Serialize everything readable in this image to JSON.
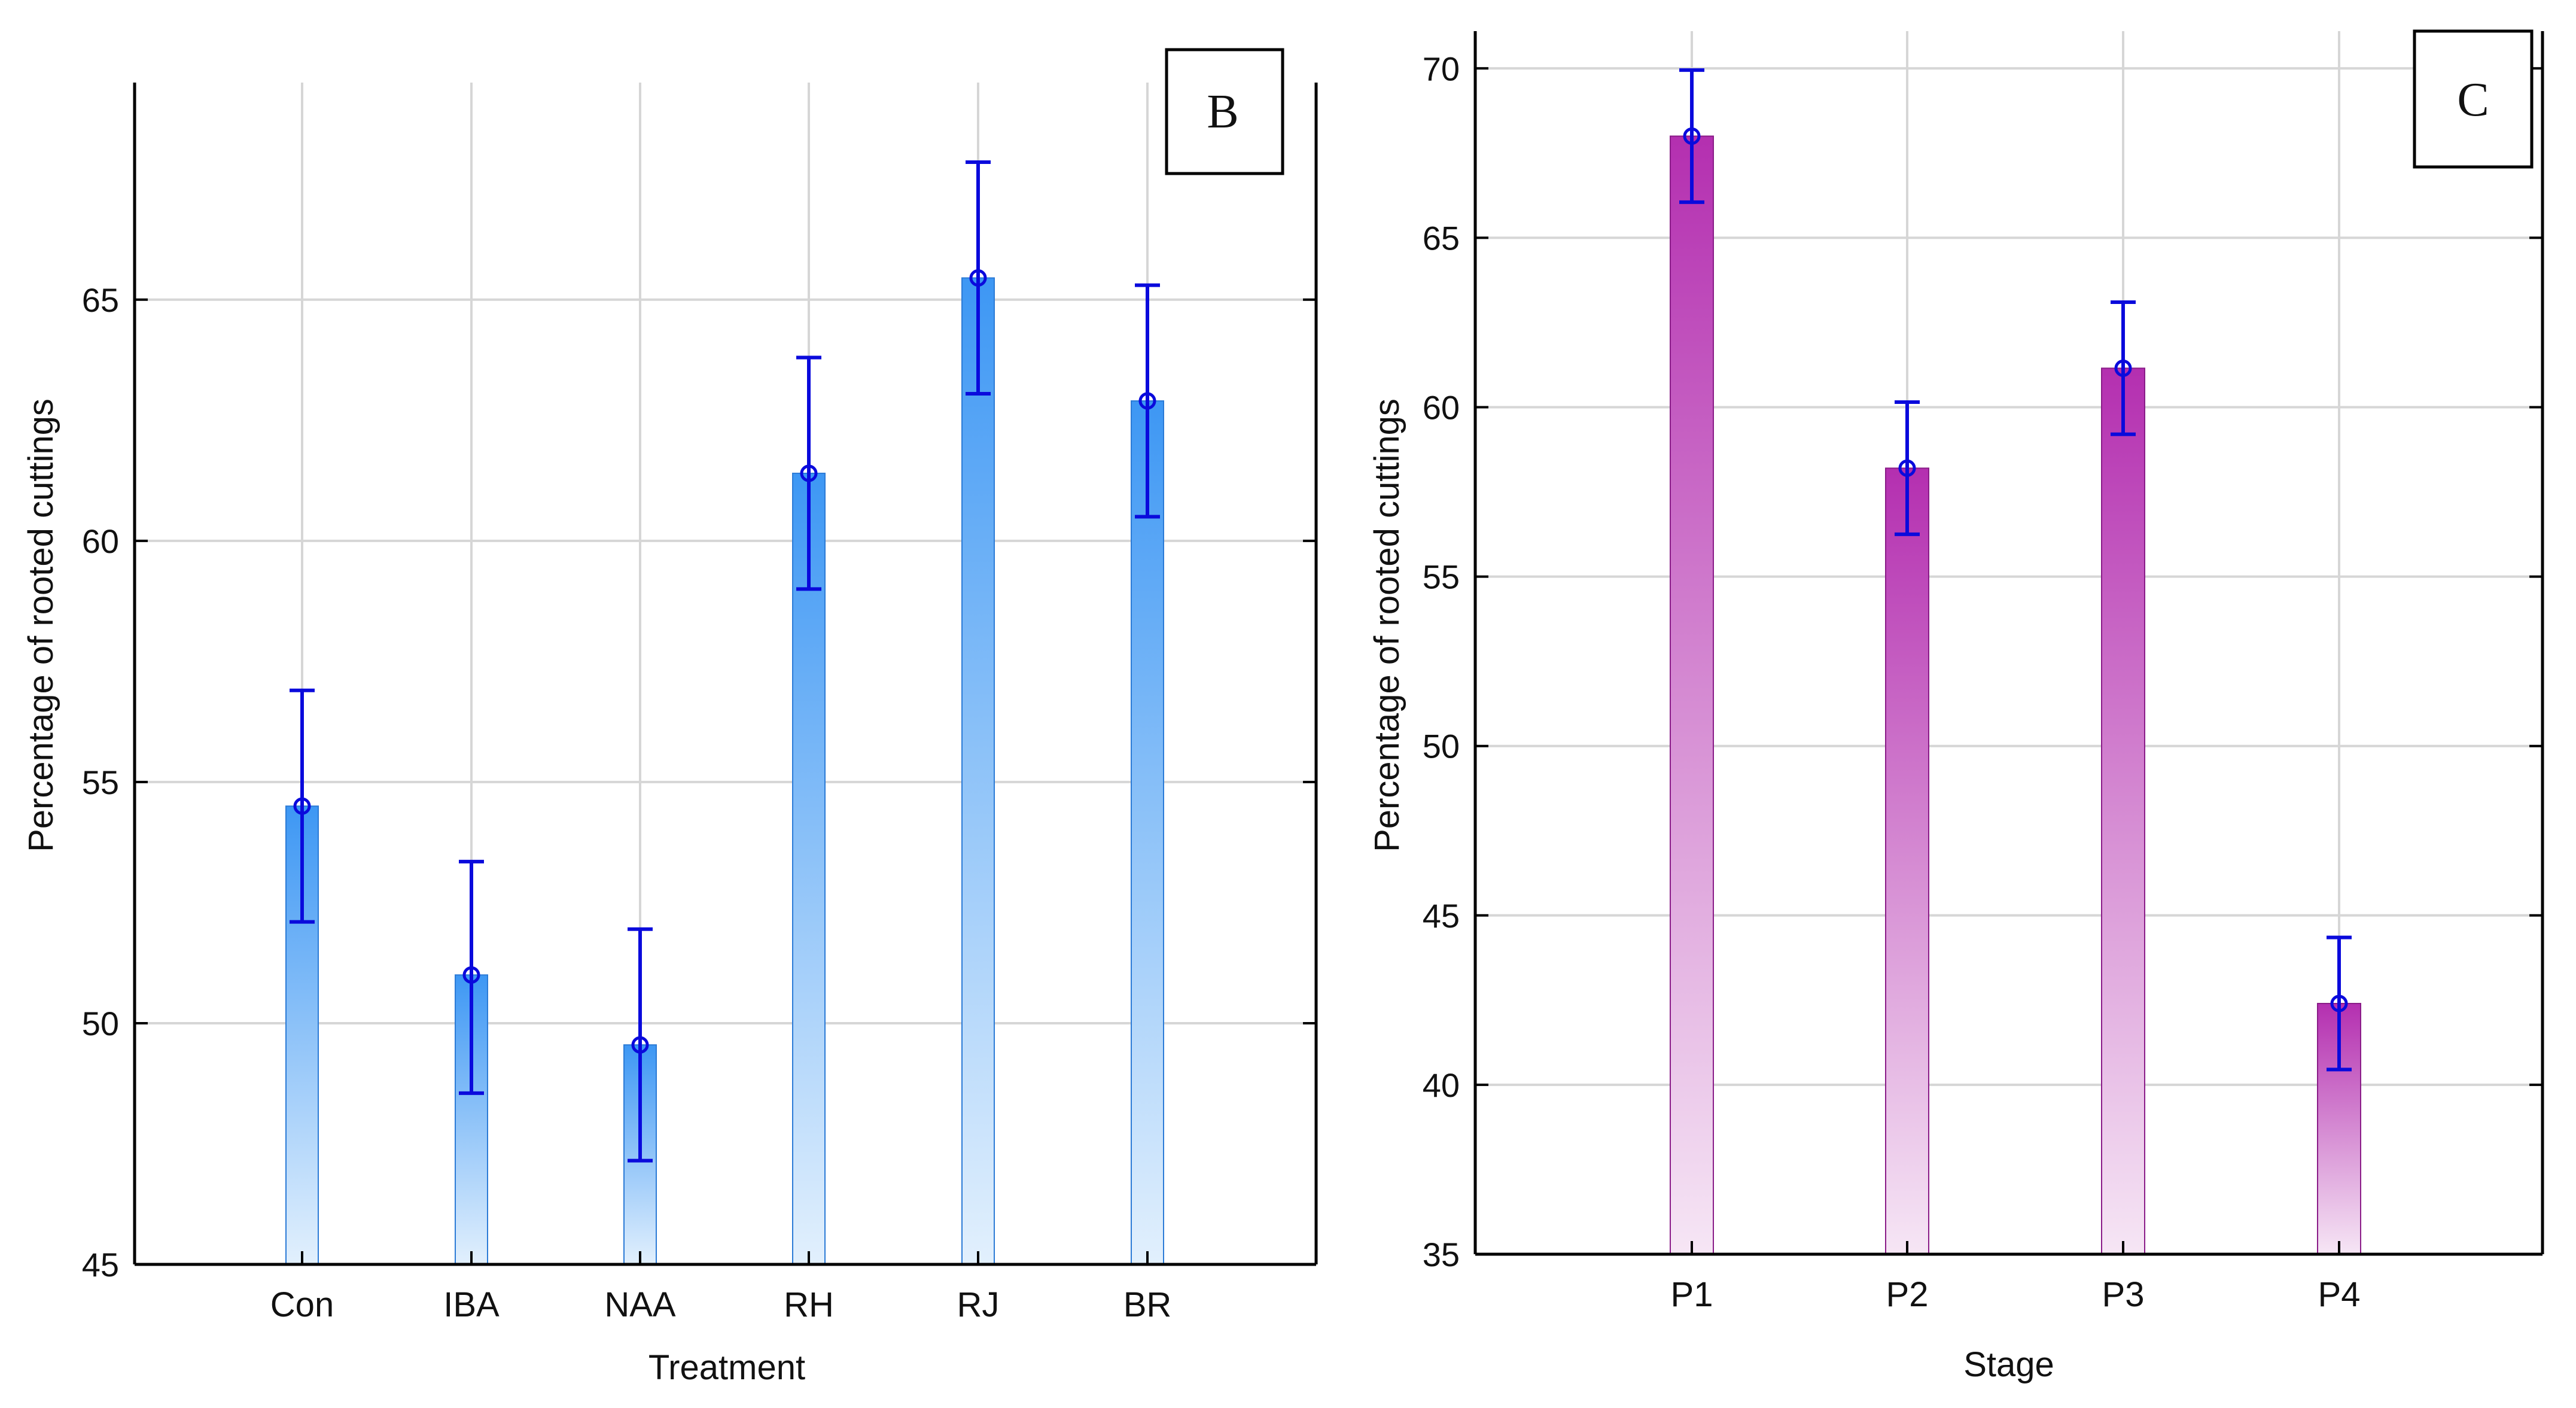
{
  "chart_data": [
    {
      "type": "bar",
      "panel_label": "B",
      "title": "",
      "xlabel": "Treatment",
      "ylabel": "Percentage of rooted cuttings",
      "categories": [
        "Con",
        "IBA",
        "NAA",
        "RH",
        "RJ",
        "BR"
      ],
      "values": [
        54.5,
        51.0,
        49.55,
        61.4,
        65.45,
        62.9
      ],
      "error_low": [
        52.1,
        48.55,
        47.15,
        59.0,
        63.05,
        60.5
      ],
      "error_high": [
        56.9,
        53.35,
        51.95,
        63.8,
        67.85,
        65.3
      ],
      "ylim": [
        45,
        69.5
      ],
      "yticks": [
        45,
        50,
        55,
        60,
        65
      ],
      "ytick_labels": [
        "45",
        "50",
        "55",
        "60",
        "65"
      ],
      "grid": true,
      "colors": {
        "bar_top": "#3d97f4",
        "bar_bottom": "#e2f0fd",
        "bar_edge": "#2c7bd6",
        "error": "#0a0adc"
      }
    },
    {
      "type": "bar",
      "panel_label": "C",
      "title": "",
      "xlabel": "Stage",
      "ylabel": "Percentage of rooted cuttings",
      "categories": [
        "P1",
        "P2",
        "P3",
        "P4"
      ],
      "values": [
        68.0,
        58.2,
        61.15,
        42.4
      ],
      "error_low": [
        66.05,
        56.25,
        59.2,
        40.45
      ],
      "error_high": [
        69.95,
        60.15,
        63.1,
        44.35
      ],
      "ylim": [
        35,
        71.1
      ],
      "yticks": [
        35,
        40,
        45,
        50,
        55,
        60,
        65,
        70
      ],
      "ytick_labels": [
        "35",
        "40",
        "45",
        "50",
        "55",
        "60",
        "65",
        "70"
      ],
      "grid": true,
      "colors": {
        "bar_top": "#b42fb0",
        "bar_bottom": "#f6e6f5",
        "bar_edge": "#8a1c88",
        "error": "#0a0adc"
      }
    }
  ]
}
